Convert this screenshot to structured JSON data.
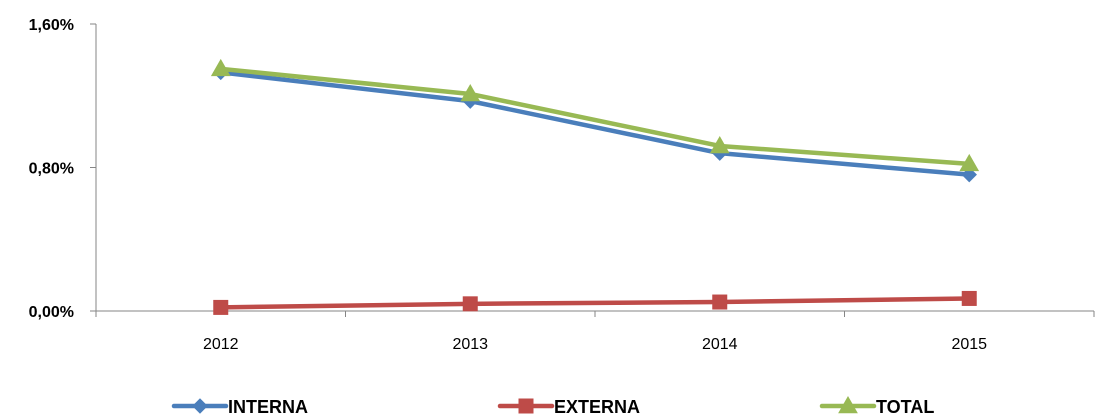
{
  "chart_data": {
    "type": "line",
    "title": "",
    "xlabel": "",
    "ylabel": "",
    "categories": [
      "2012",
      "2013",
      "2014",
      "2015"
    ],
    "y_ticks": [
      "0,00%",
      "0,80%",
      "1,60%"
    ],
    "ylim": [
      0,
      1.6
    ],
    "y_unit": "%",
    "grid": false,
    "legend_position": "bottom",
    "series": [
      {
        "name": "INTERNA",
        "values": [
          1.33,
          1.17,
          0.88,
          0.76
        ],
        "color": "#4a7ebb",
        "marker": "diamond"
      },
      {
        "name": "EXTERNA",
        "values": [
          0.02,
          0.04,
          0.05,
          0.07
        ],
        "color": "#be4b48",
        "marker": "square"
      },
      {
        "name": "TOTAL",
        "values": [
          1.35,
          1.21,
          0.92,
          0.82
        ],
        "color": "#98b954",
        "marker": "triangle"
      }
    ]
  }
}
